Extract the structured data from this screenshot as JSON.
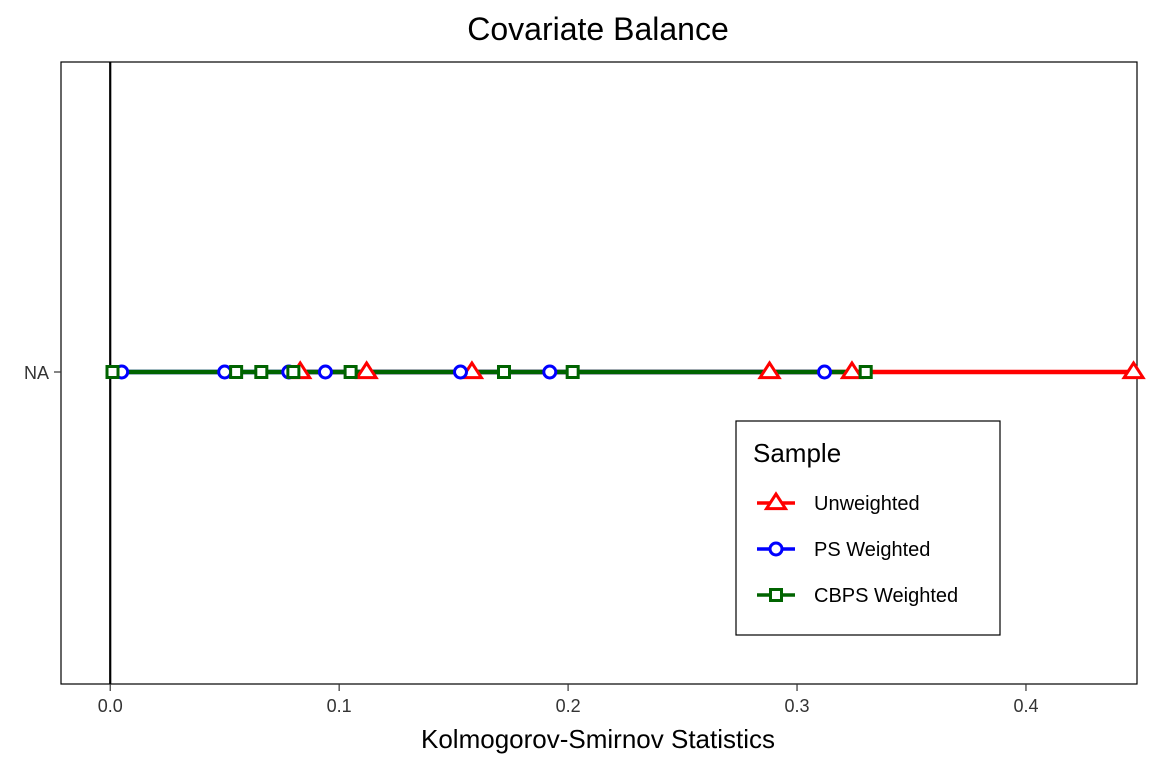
{
  "chart_data": {
    "type": "line",
    "title": "Covariate Balance",
    "xlabel": "Kolmogorov-Smirnov Statistics",
    "ylabel": "",
    "xlim": [
      -0.0215,
      0.4485
    ],
    "x_ticks": [
      0.0,
      0.1,
      0.2,
      0.3,
      0.4
    ],
    "x_tick_labels": [
      "0.0",
      "0.1",
      "0.2",
      "0.3",
      "0.4"
    ],
    "y_categories": [
      "NA"
    ],
    "reference_line_x": 0,
    "grid": false,
    "legend": {
      "title": "Sample",
      "position": "bottom-right-inside"
    },
    "series": [
      {
        "name": "Unweighted",
        "color": "#ff0000",
        "marker": "triangle",
        "x": [
          0.083,
          0.112,
          0.158,
          0.288,
          0.324,
          0.447
        ]
      },
      {
        "name": "PS Weighted",
        "color": "#0000ff",
        "marker": "circle",
        "x": [
          0.005,
          0.05,
          0.078,
          0.094,
          0.153,
          0.192,
          0.312
        ]
      },
      {
        "name": "CBPS Weighted",
        "color": "#006400",
        "marker": "square",
        "x": [
          0.001,
          0.055,
          0.066,
          0.08,
          0.105,
          0.172,
          0.202,
          0.33
        ]
      }
    ]
  }
}
